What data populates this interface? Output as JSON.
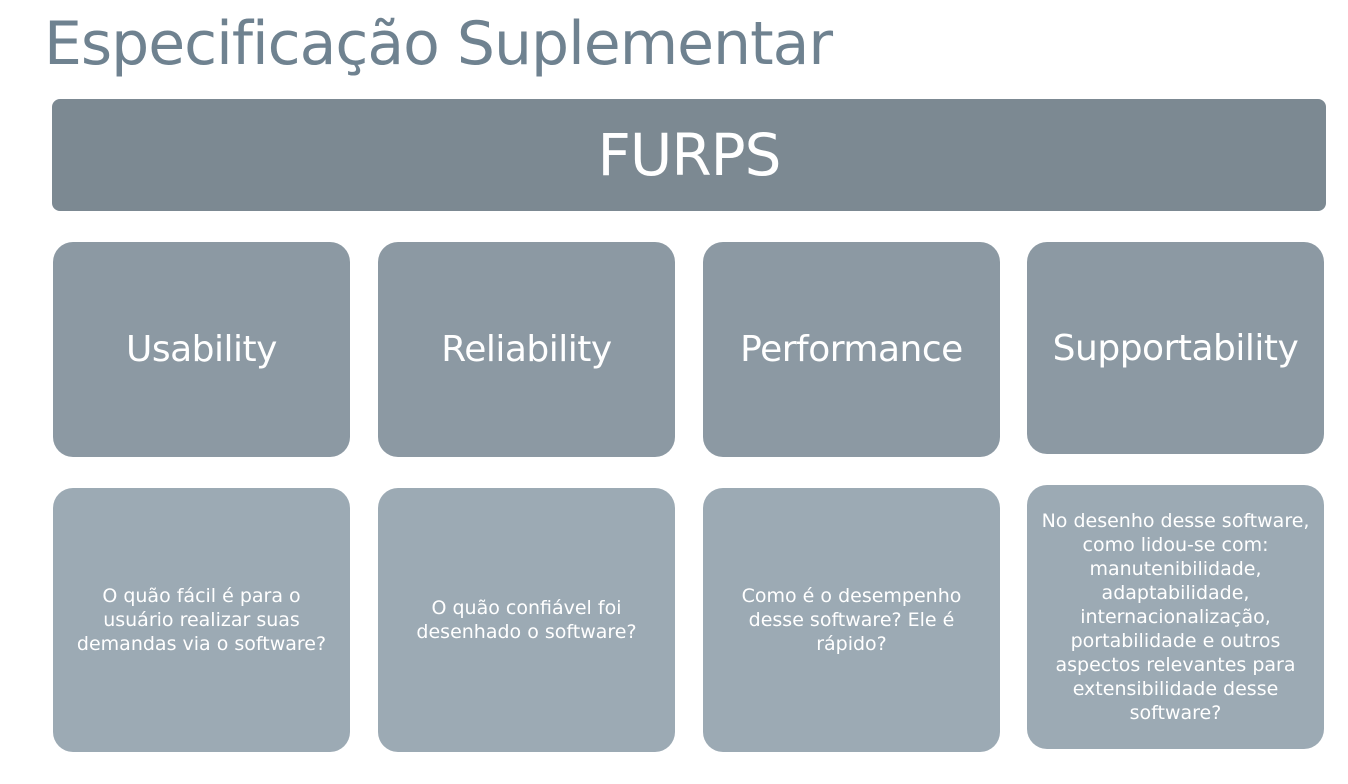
{
  "title": "Especificação Suplementar",
  "header": "FURPS",
  "categories": [
    {
      "name": "Usability",
      "description": "O quão fácil é para o usuário realizar suas demandas via o software?"
    },
    {
      "name": "Reliability",
      "description": "O quão confiável foi desenhado o software?"
    },
    {
      "name": "Performance",
      "description": "Como é o desempenho desse software? Ele é rápido?"
    },
    {
      "name": "Supportability",
      "description": "No desenho desse software, como lidou-se com: manutenibilidade, adaptabilidade, internacionalização, portabilidade e outros aspectos relevantes para extensibilidade desse software?"
    }
  ],
  "colors": {
    "title": "#6f8290",
    "header_bg": "#7c8992",
    "category_bg": "#8c99a3",
    "description_bg": "#9caab4",
    "text": "#ffffff"
  }
}
